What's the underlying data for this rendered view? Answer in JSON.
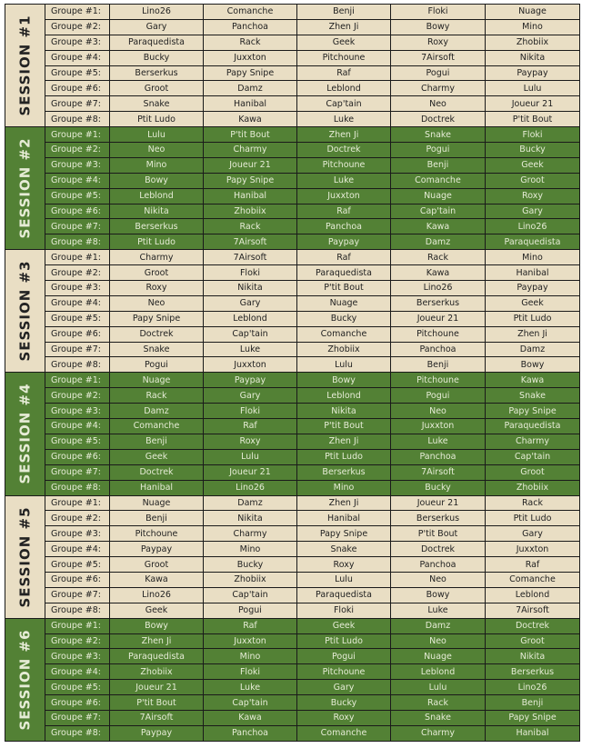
{
  "colors": {
    "beige": "#e9dec4",
    "green": "#538135",
    "beige_text": "#222222",
    "green_text": "#e6ecd6"
  },
  "group_labels": [
    "Groupe #1:",
    "Groupe #2:",
    "Groupe #3:",
    "Groupe #4:",
    "Groupe #5:",
    "Groupe #6:",
    "Groupe #7:",
    "Groupe #8:"
  ],
  "sessions": [
    {
      "label": "SESSION #1",
      "theme": "beige",
      "groups": [
        [
          "Lino26",
          "Comanche",
          "Benji",
          "Floki",
          "Nuage"
        ],
        [
          "Gary",
          "Panchoa",
          "Zhen Ji",
          "Bowy",
          "Mino"
        ],
        [
          "Paraquedista",
          "Rack",
          "Geek",
          "Roxy",
          "Zhobiix"
        ],
        [
          "Bucky",
          "Juxxton",
          "Pitchoune",
          "7Airsoft",
          "Nikita"
        ],
        [
          "Berserkus",
          "Papy Snipe",
          "Raf",
          "Pogui",
          "Paypay"
        ],
        [
          "Groot",
          "Damz",
          "Leblond",
          "Charmy",
          "Lulu"
        ],
        [
          "Snake",
          "Hanibal",
          "Cap'tain",
          "Neo",
          "Joueur 21"
        ],
        [
          "Ptit Ludo",
          "Kawa",
          "Luke",
          "Doctrek",
          "P'tit Bout"
        ]
      ]
    },
    {
      "label": "SESSION #2",
      "theme": "green",
      "groups": [
        [
          "Lulu",
          "P'tit Bout",
          "Zhen Ji",
          "Snake",
          "Floki"
        ],
        [
          "Neo",
          "Charmy",
          "Doctrek",
          "Pogui",
          "Bucky"
        ],
        [
          "Mino",
          "Joueur 21",
          "Pitchoune",
          "Benji",
          "Geek"
        ],
        [
          "Bowy",
          "Papy Snipe",
          "Luke",
          "Comanche",
          "Groot"
        ],
        [
          "Leblond",
          "Hanibal",
          "Juxxton",
          "Nuage",
          "Roxy"
        ],
        [
          "Nikita",
          "Zhobiix",
          "Raf",
          "Cap'tain",
          "Gary"
        ],
        [
          "Berserkus",
          "Rack",
          "Panchoa",
          "Kawa",
          "Lino26"
        ],
        [
          "Ptit Ludo",
          "7Airsoft",
          "Paypay",
          "Damz",
          "Paraquedista"
        ]
      ]
    },
    {
      "label": "SESSION #3",
      "theme": "beige",
      "groups": [
        [
          "Charmy",
          "7Airsoft",
          "Raf",
          "Rack",
          "Mino"
        ],
        [
          "Groot",
          "Floki",
          "Paraquedista",
          "Kawa",
          "Hanibal"
        ],
        [
          "Roxy",
          "Nikita",
          "P'tit Bout",
          "Lino26",
          "Paypay"
        ],
        [
          "Neo",
          "Gary",
          "Nuage",
          "Berserkus",
          "Geek"
        ],
        [
          "Papy Snipe",
          "Leblond",
          "Bucky",
          "Joueur 21",
          "Ptit Ludo"
        ],
        [
          "Doctrek",
          "Cap'tain",
          "Comanche",
          "Pitchoune",
          "Zhen Ji"
        ],
        [
          "Snake",
          "Luke",
          "Zhobiix",
          "Panchoa",
          "Damz"
        ],
        [
          "Pogui",
          "Juxxton",
          "Lulu",
          "Benji",
          "Bowy"
        ]
      ]
    },
    {
      "label": "SESSION #4",
      "theme": "green",
      "groups": [
        [
          "Nuage",
          "Paypay",
          "Bowy",
          "Pitchoune",
          "Kawa"
        ],
        [
          "Rack",
          "Gary",
          "Leblond",
          "Pogui",
          "Snake"
        ],
        [
          "Damz",
          "Floki",
          "Nikita",
          "Neo",
          "Papy Snipe"
        ],
        [
          "Comanche",
          "Raf",
          "P'tit Bout",
          "Juxxton",
          "Paraquedista"
        ],
        [
          "Benji",
          "Roxy",
          "Zhen Ji",
          "Luke",
          "Charmy"
        ],
        [
          "Geek",
          "Lulu",
          "Ptit Ludo",
          "Panchoa",
          "Cap'tain"
        ],
        [
          "Doctrek",
          "Joueur 21",
          "Berserkus",
          "7Airsoft",
          "Groot"
        ],
        [
          "Hanibal",
          "Lino26",
          "Mino",
          "Bucky",
          "Zhobiix"
        ]
      ]
    },
    {
      "label": "SESSION #5",
      "theme": "beige",
      "groups": [
        [
          "Nuage",
          "Damz",
          "Zhen Ji",
          "Joueur 21",
          "Rack"
        ],
        [
          "Benji",
          "Nikita",
          "Hanibal",
          "Berserkus",
          "Ptit Ludo"
        ],
        [
          "Pitchoune",
          "Charmy",
          "Papy Snipe",
          "P'tit Bout",
          "Gary"
        ],
        [
          "Paypay",
          "Mino",
          "Snake",
          "Doctrek",
          "Juxxton"
        ],
        [
          "Groot",
          "Bucky",
          "Roxy",
          "Panchoa",
          "Raf"
        ],
        [
          "Kawa",
          "Zhobiix",
          "Lulu",
          "Neo",
          "Comanche"
        ],
        [
          "Lino26",
          "Cap'tain",
          "Paraquedista",
          "Bowy",
          "Leblond"
        ],
        [
          "Geek",
          "Pogui",
          "Floki",
          "Luke",
          "7Airsoft"
        ]
      ]
    },
    {
      "label": "SESSION #6",
      "theme": "green",
      "groups": [
        [
          "Bowy",
          "Raf",
          "Geek",
          "Damz",
          "Doctrek"
        ],
        [
          "Zhen Ji",
          "Juxxton",
          "Ptit Ludo",
          "Neo",
          "Groot"
        ],
        [
          "Paraquedista",
          "Mino",
          "Pogui",
          "Nuage",
          "Nikita"
        ],
        [
          "Zhobiix",
          "Floki",
          "Pitchoune",
          "Leblond",
          "Berserkus"
        ],
        [
          "Joueur 21",
          "Luke",
          "Gary",
          "Lulu",
          "Lino26"
        ],
        [
          "P'tit Bout",
          "Cap'tain",
          "Bucky",
          "Rack",
          "Benji"
        ],
        [
          "7Airsoft",
          "Kawa",
          "Roxy",
          "Snake",
          "Papy Snipe"
        ],
        [
          "Paypay",
          "Panchoa",
          "Comanche",
          "Charmy",
          "Hanibal"
        ]
      ]
    }
  ]
}
